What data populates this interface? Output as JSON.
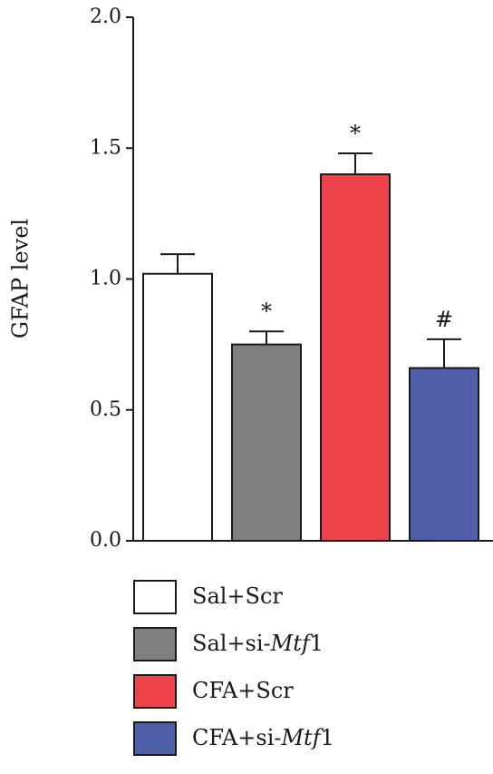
{
  "chart_data": {
    "type": "bar",
    "title": "",
    "xlabel": "",
    "ylabel": "GFAP level",
    "ylim": [
      0,
      2.0
    ],
    "yticks": [
      "0.0",
      "0.5",
      "1.0",
      "1.5",
      "2.0"
    ],
    "grid": false,
    "legend_position": "bottom",
    "categories": [
      "Sal+Scr",
      "Sal+si-Mtf1",
      "CFA+Scr",
      "CFA+si-Mtf1"
    ],
    "values": [
      1.02,
      0.75,
      1.4,
      0.66
    ],
    "errors": [
      0.075,
      0.05,
      0.08,
      0.11
    ],
    "annotations": [
      "",
      "*",
      "*",
      "#"
    ],
    "colors": [
      "#ffffff",
      "#7f7f7f",
      "#ee434b",
      "#4f5ea8"
    ],
    "legend": [
      {
        "prefix": "Sal+Scr",
        "italic": "",
        "suffix": ""
      },
      {
        "prefix": "Sal+si-",
        "italic": "Mtf",
        "suffix": "1"
      },
      {
        "prefix": "CFA+Scr",
        "italic": "",
        "suffix": ""
      },
      {
        "prefix": "CFA+si-",
        "italic": "Mtf",
        "suffix": "1"
      }
    ]
  }
}
